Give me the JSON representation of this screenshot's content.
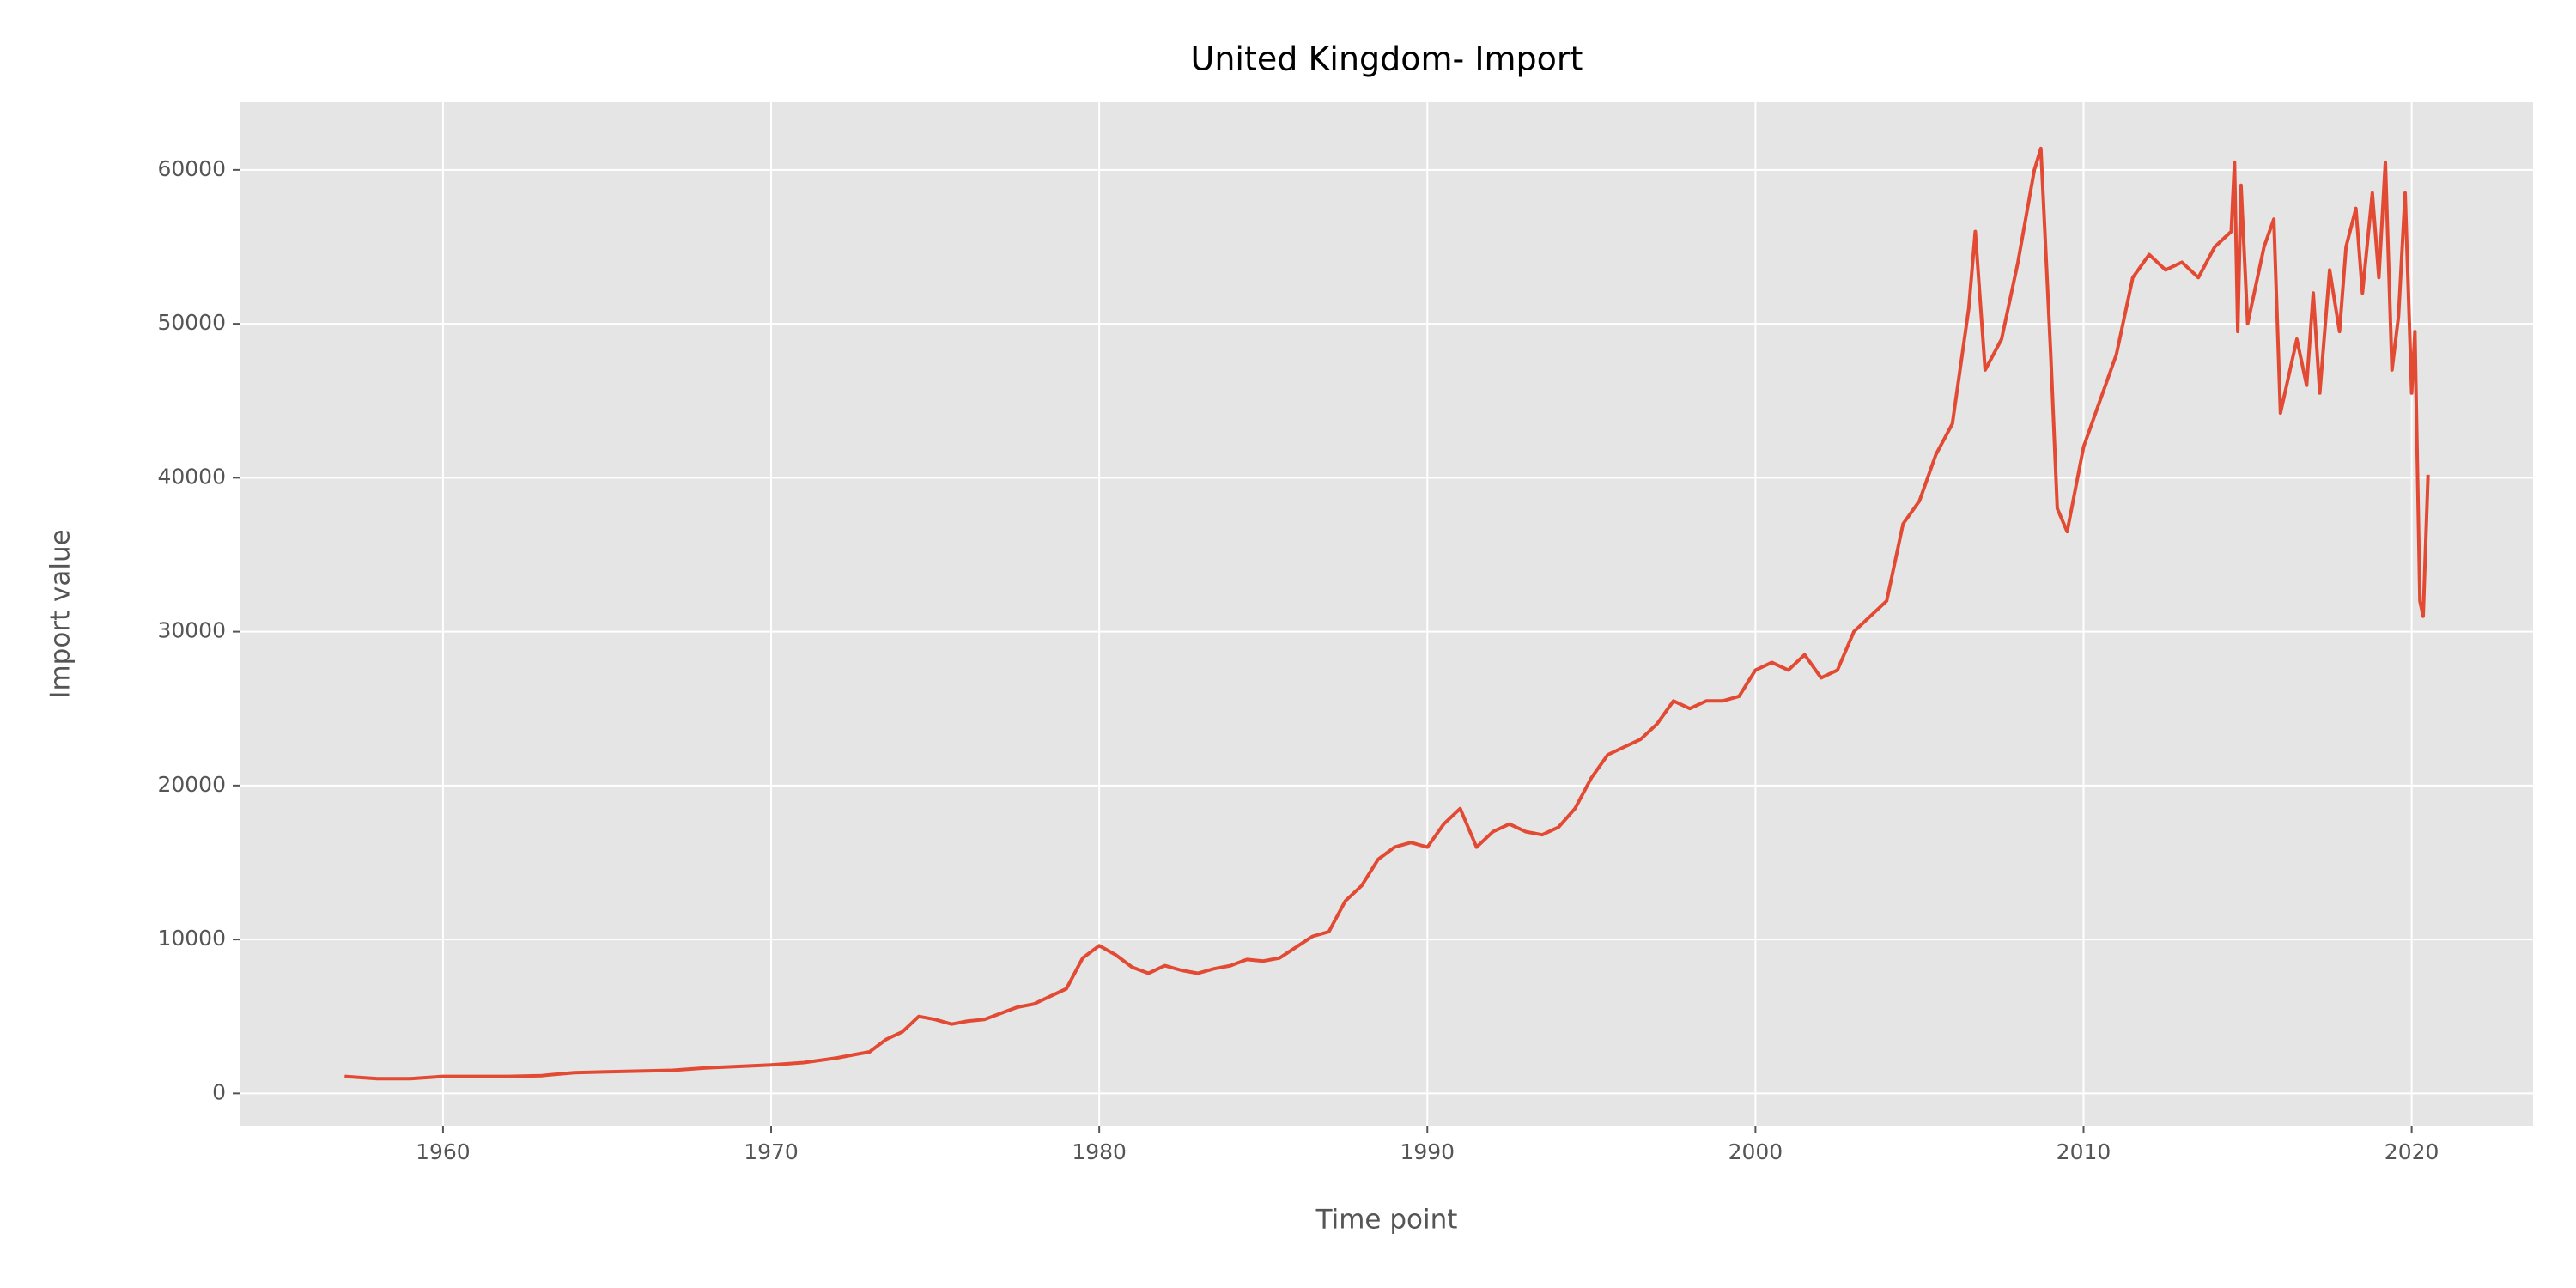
{
  "chart_data": {
    "type": "line",
    "title": "United Kingdom- Import",
    "xlabel": "Time point",
    "ylabel": "Import value",
    "x": [
      1957,
      1958,
      1959,
      1960,
      1961,
      1962,
      1963,
      1964,
      1965,
      1966,
      1967,
      1968,
      1969,
      1970,
      1971,
      1972,
      1972.5,
      1973,
      1973.5,
      1974,
      1974.5,
      1975,
      1975.5,
      1976,
      1976.5,
      1977,
      1977.5,
      1978,
      1978.5,
      1979,
      1979.5,
      1980,
      1980.5,
      1981,
      1981.5,
      1982,
      1982.5,
      1983,
      1983.5,
      1984,
      1984.5,
      1985,
      1985.5,
      1986,
      1986.5,
      1987,
      1987.5,
      1988,
      1988.5,
      1989,
      1989.5,
      1990,
      1990.5,
      1991,
      1991.5,
      1992,
      1992.5,
      1993,
      1993.5,
      1994,
      1994.5,
      1995,
      1995.5,
      1996,
      1996.5,
      1997,
      1997.5,
      1998,
      1998.5,
      1999,
      1999.5,
      2000,
      2000.5,
      2001,
      2001.5,
      2002,
      2002.5,
      2003,
      2003.5,
      2004,
      2004.5,
      2005,
      2005.5,
      2006,
      2006.5,
      2006.7,
      2007,
      2007.5,
      2008,
      2008.5,
      2008.7,
      2009,
      2009.2,
      2009.5,
      2010,
      2010.5,
      2011,
      2011.5,
      2012,
      2012.5,
      2013,
      2013.5,
      2014,
      2014.5,
      2014.6,
      2014.7,
      2014.8,
      2015,
      2015.5,
      2015.8,
      2016,
      2016.5,
      2016.8,
      2017,
      2017.2,
      2017.5,
      2017.8,
      2018,
      2018.3,
      2018.5,
      2018.8,
      2019,
      2019.2,
      2019.4,
      2019.6,
      2019.8,
      2020,
      2020.1,
      2020.25,
      2020.35,
      2020.5
    ],
    "series": [
      {
        "name": "Import value",
        "color": "#e24a33",
        "values": [
          1100,
          950,
          950,
          1100,
          1100,
          1100,
          1150,
          1350,
          1400,
          1450,
          1500,
          1650,
          1750,
          1850,
          2000,
          2300,
          2500,
          2700,
          3500,
          4000,
          5000,
          4800,
          4500,
          4700,
          4800,
          5200,
          5600,
          5800,
          6300,
          6800,
          8800,
          9600,
          9000,
          8200,
          7800,
          8300,
          8000,
          7800,
          8100,
          8300,
          8700,
          8600,
          8800,
          9500,
          10200,
          10500,
          12500,
          13500,
          15200,
          16000,
          16300,
          16000,
          17500,
          18500,
          16000,
          17000,
          17500,
          17000,
          16800,
          17300,
          18500,
          20500,
          22000,
          22500,
          23000,
          24000,
          25500,
          25000,
          25500,
          25500,
          25800,
          27500,
          28000,
          27500,
          28500,
          27000,
          27500,
          30000,
          31000,
          32000,
          37000,
          38500,
          41500,
          43500,
          51000,
          56000,
          47000,
          49000,
          54000,
          60000,
          61400,
          48000,
          38000,
          36500,
          42000,
          45000,
          48000,
          53000,
          54500,
          53500,
          54000,
          53000,
          55000,
          56000,
          60500,
          49500,
          59000,
          50000,
          55000,
          56800,
          44200,
          49000,
          46000,
          52000,
          45500,
          53500,
          49500,
          55000,
          57500,
          52000,
          58500,
          53000,
          60500,
          47000,
          50500,
          58500,
          45500,
          49500,
          32000,
          31000,
          40200
        ]
      }
    ],
    "xlim": [
      1953.8,
      2023.7
    ],
    "ylim": [
      -2100,
      64400
    ],
    "xticks": [
      1960,
      1970,
      1980,
      1990,
      2000,
      2010,
      2020
    ],
    "yticks": [
      0,
      10000,
      20000,
      30000,
      40000,
      50000,
      60000
    ],
    "grid": true
  }
}
